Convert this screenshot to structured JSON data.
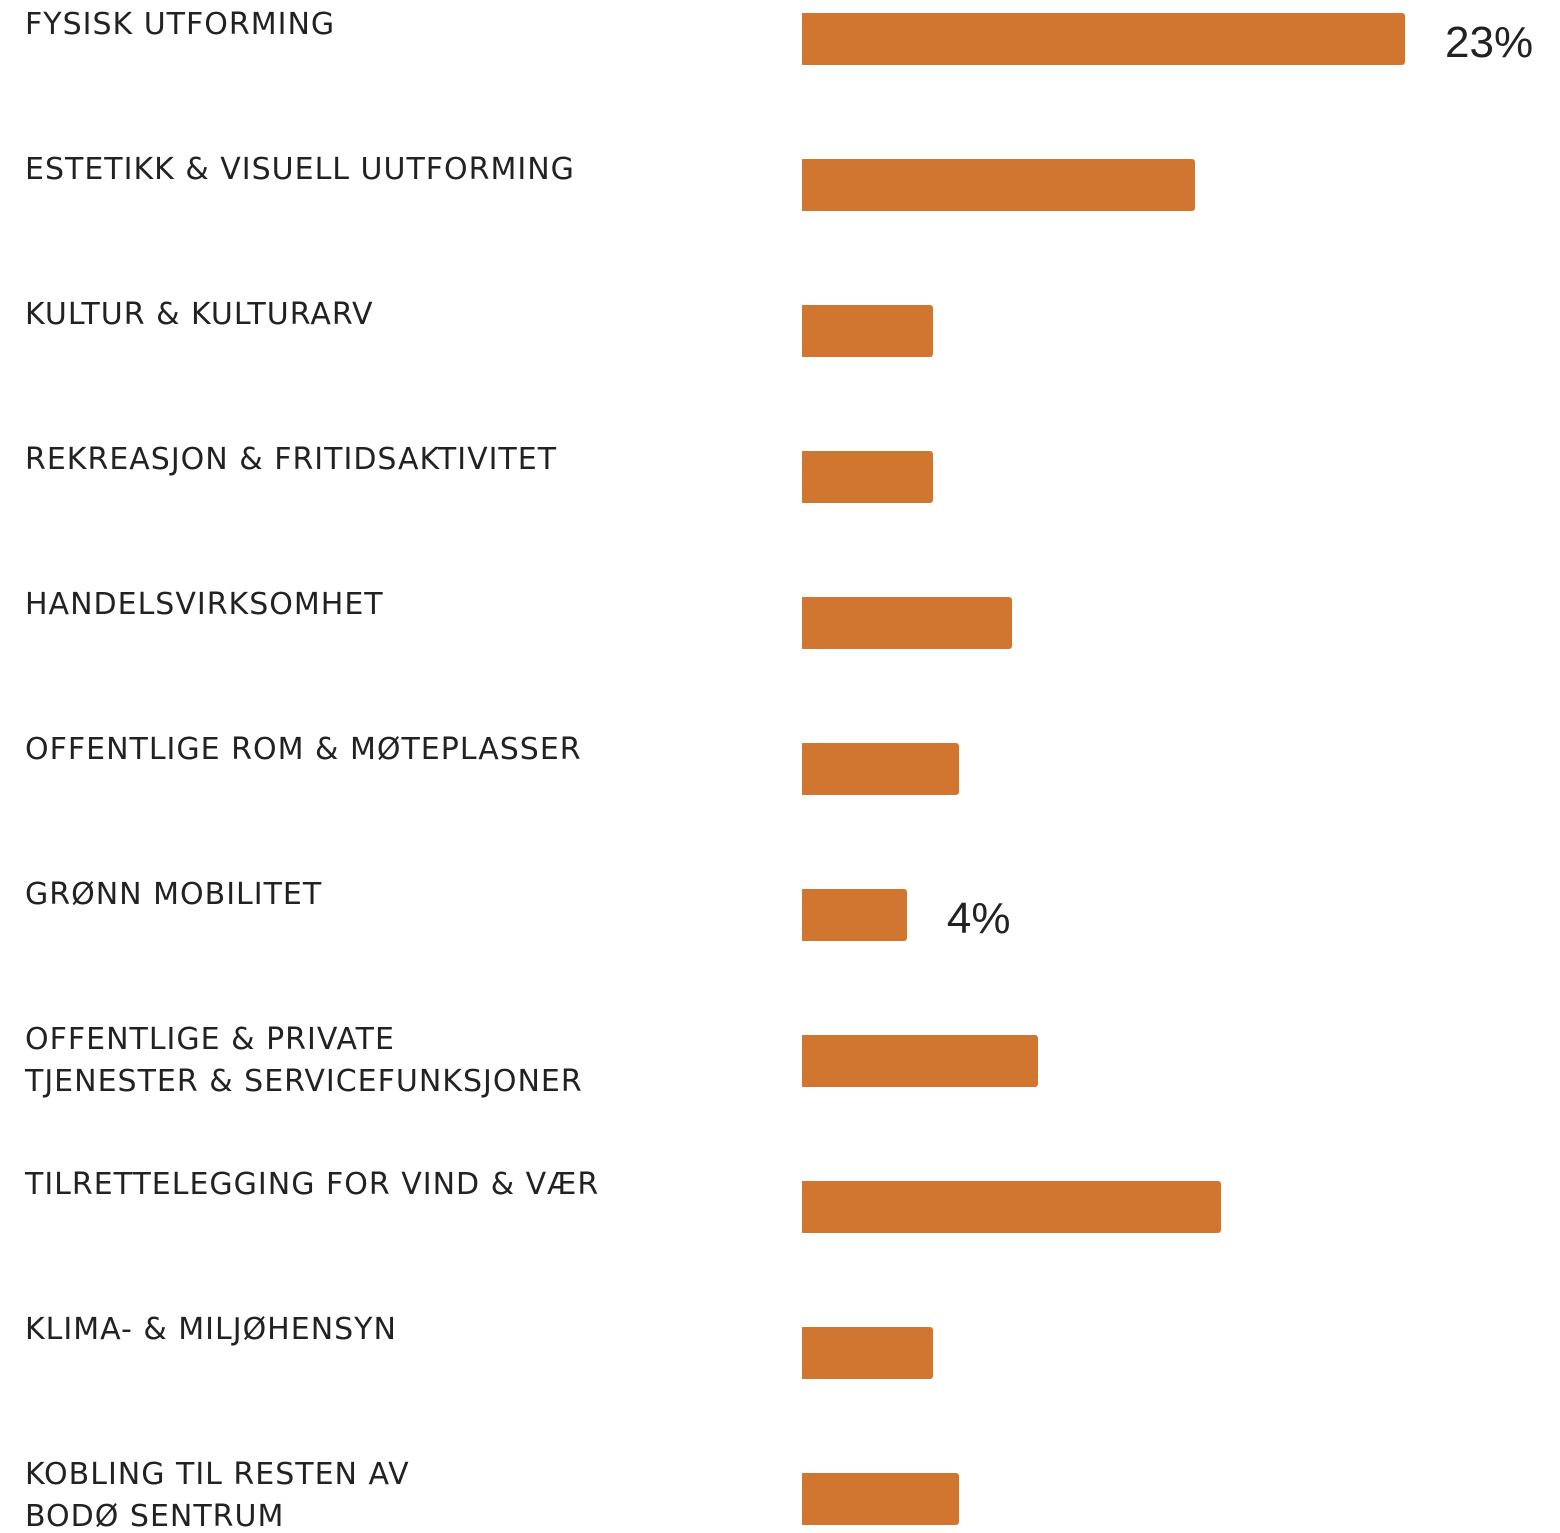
{
  "chart_data": {
    "type": "bar",
    "orientation": "horizontal",
    "color": "#d07630",
    "categories": [
      "FYSISK UTFORMING",
      "ESTETIKK & VISUELL UUTFORMING",
      "KULTUR & KULTURARV",
      "REKREASJON & FRITIDSAKTIVITET",
      "HANDELSVIRKSOMHET",
      "OFFENTLIGE ROM & MØTEPLASSER",
      "GRØNN MOBILITET",
      "OFFENTLIGE & PRIVATE\nTJENESTER  & SERVICEFUNKSJONER",
      "TILRETTELEGGING FOR VIND & VÆR",
      "KLIMA- & MILJØHENSYN",
      "KOBLING TIL RESTEN AV\nBODØ SENTRUM"
    ],
    "values": [
      23,
      15,
      5,
      5,
      8,
      6,
      4,
      9,
      16,
      5,
      6
    ],
    "value_labels": [
      "23%",
      null,
      null,
      null,
      null,
      null,
      "4%",
      null,
      null,
      null,
      null
    ]
  }
}
